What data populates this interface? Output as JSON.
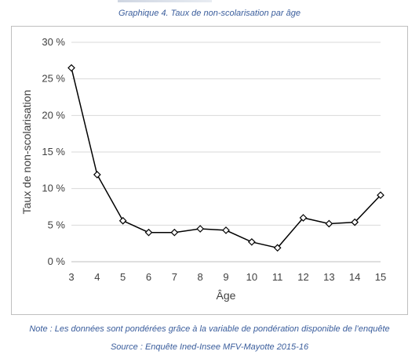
{
  "caption": "Graphique 4. Taux de non-scolarisation par âge",
  "note": "Note : Les données sont pondérées grâce à la variable de pondération disponible de l’enquête",
  "source": "Source : Enquête Ined-Insee MFV-Mayotte 2015-16",
  "colors": {
    "caption_text": "#3a5d9c",
    "line": "#000000",
    "grid": "#d9d9d9"
  },
  "chart_data": {
    "type": "line",
    "title": "",
    "xlabel": "Âge",
    "ylabel": "Taux de non-scolarisation",
    "x": [
      3,
      4,
      5,
      6,
      7,
      8,
      9,
      10,
      11,
      12,
      13,
      14,
      15
    ],
    "series": [
      {
        "values": [
          26.5,
          11.9,
          5.6,
          4.0,
          4.0,
          4.5,
          4.3,
          2.7,
          1.9,
          6.0,
          5.2,
          5.4,
          9.1
        ]
      }
    ],
    "ylim": [
      0,
      30
    ],
    "yticks": [
      0,
      5,
      10,
      15,
      20,
      25,
      30
    ],
    "yticklabels": [
      "0 %",
      "5 %",
      "10 %",
      "15 %",
      "20 %",
      "25 %",
      "30 %"
    ],
    "xticklabels": [
      "3",
      "4",
      "5",
      "6",
      "7",
      "8",
      "9",
      "10",
      "11",
      "12",
      "13",
      "14",
      "15"
    ],
    "marker": "diamond",
    "grid": "horizontal",
    "legend": "none"
  }
}
